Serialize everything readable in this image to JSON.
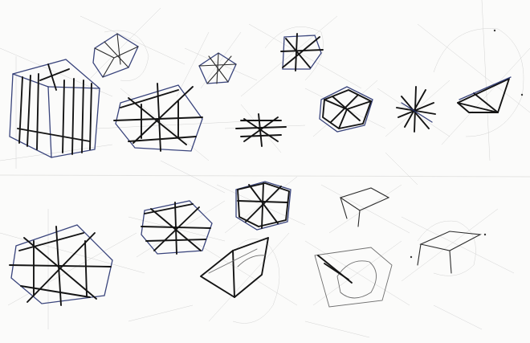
{
  "image": {
    "kind": "pencil-and-ink perspective sketches of cubes, planes and star constructions",
    "colors": {
      "paper": "#fbfbfa",
      "ink": "#141414",
      "blue_pencil": "#23306e",
      "construction_pencil": "#a9a9a9"
    }
  }
}
